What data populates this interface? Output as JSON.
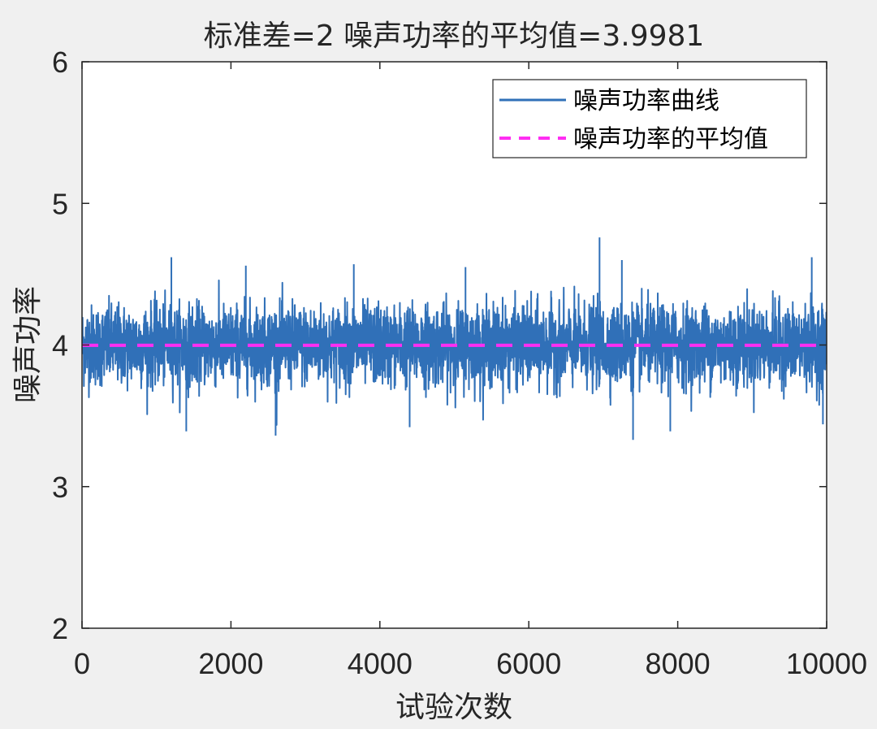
{
  "chart_data": {
    "type": "line",
    "title": "标准差=2    噪声功率的平均值=3.9981",
    "xlabel": "试验次数",
    "ylabel": "噪声功率",
    "xlim": [
      0,
      10000
    ],
    "ylim": [
      2,
      6
    ],
    "x_ticks": [
      "0",
      "2000",
      "4000",
      "6000",
      "8000",
      "10000"
    ],
    "y_ticks": [
      "2",
      "3",
      "4",
      "5",
      "6"
    ],
    "grid": false,
    "legend_position": "top-right",
    "series": [
      {
        "name": "噪声功率曲线",
        "color": "#3070b8",
        "style": "solid",
        "n_points": 10000,
        "mean": 3.9981,
        "band_min": 3.33,
        "band_max": 4.76,
        "peaks": [
          {
            "x": 1200,
            "y": 4.62
          },
          {
            "x": 2200,
            "y": 4.56
          },
          {
            "x": 3650,
            "y": 4.57
          },
          {
            "x": 5150,
            "y": 4.55
          },
          {
            "x": 6950,
            "y": 4.76
          },
          {
            "x": 7250,
            "y": 4.6
          },
          {
            "x": 9800,
            "y": 4.62
          }
        ],
        "troughs": [
          {
            "x": 1400,
            "y": 3.39
          },
          {
            "x": 2600,
            "y": 3.36
          },
          {
            "x": 4400,
            "y": 3.42
          },
          {
            "x": 7400,
            "y": 3.33
          },
          {
            "x": 7900,
            "y": 3.39
          },
          {
            "x": 9950,
            "y": 3.44
          }
        ]
      },
      {
        "name": "噪声功率的平均值",
        "color": "#ff2ef2",
        "style": "dashed",
        "value": 3.9981
      }
    ]
  }
}
